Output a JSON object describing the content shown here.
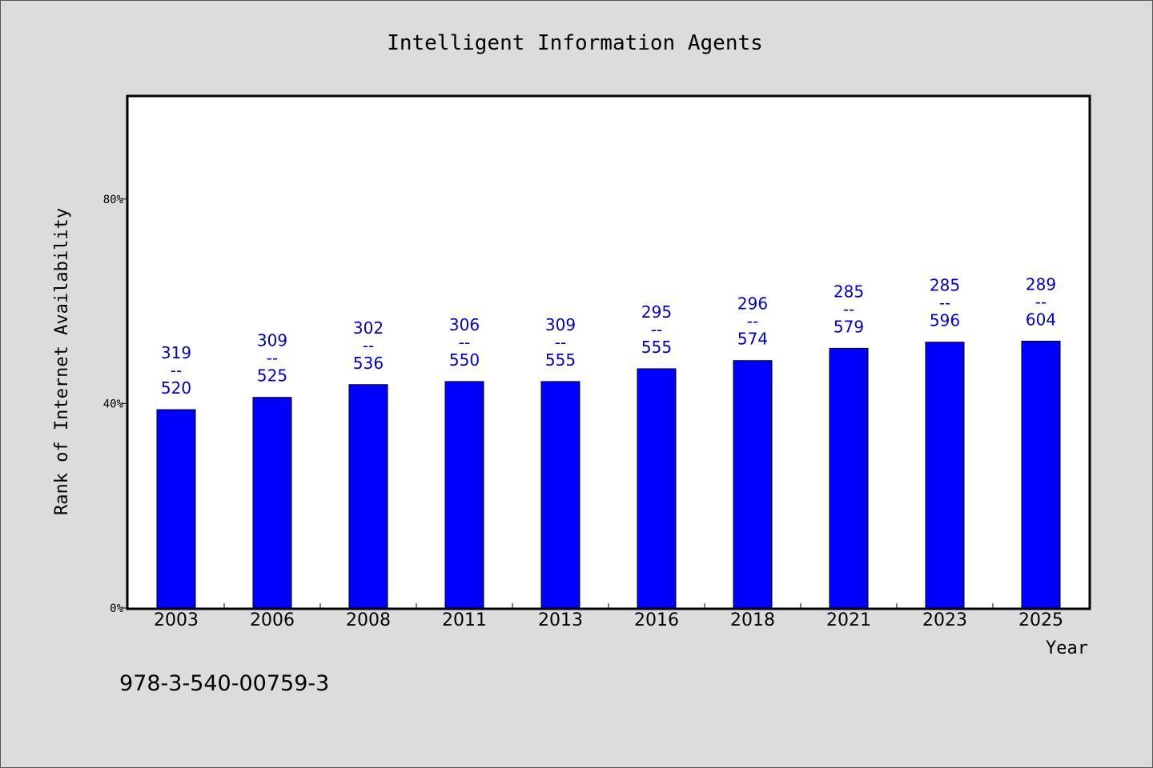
{
  "chart_data": {
    "type": "bar",
    "title": "Intelligent Information Agents",
    "xlabel": "Year",
    "ylabel": "Rank of Internet Availability",
    "categories": [
      "2003",
      "2006",
      "2008",
      "2011",
      "2013",
      "2016",
      "2018",
      "2021",
      "2023",
      "2025"
    ],
    "values": [
      38.8,
      41.2,
      43.7,
      44.3,
      44.3,
      46.8,
      48.4,
      50.8,
      52.0,
      52.2
    ],
    "labels": [
      [
        "319",
        "--",
        "520"
      ],
      [
        "309",
        "--",
        "525"
      ],
      [
        "302",
        "--",
        "536"
      ],
      [
        "306",
        "--",
        "550"
      ],
      [
        "309",
        "--",
        "555"
      ],
      [
        "295",
        "--",
        "555"
      ],
      [
        "296",
        "--",
        "574"
      ],
      [
        "285",
        "--",
        "579"
      ],
      [
        "285",
        "--",
        "596"
      ],
      [
        "289",
        "--",
        "604"
      ]
    ],
    "yticks": [
      0,
      40,
      80
    ],
    "ytick_labels": [
      "0%",
      "40%",
      "80%"
    ],
    "ylim": [
      0,
      100
    ],
    "bar_color": "#0000ff",
    "label_color": "#0000cc",
    "grid": false
  },
  "footer": {
    "isbn": "978-3-540-00759-3"
  }
}
